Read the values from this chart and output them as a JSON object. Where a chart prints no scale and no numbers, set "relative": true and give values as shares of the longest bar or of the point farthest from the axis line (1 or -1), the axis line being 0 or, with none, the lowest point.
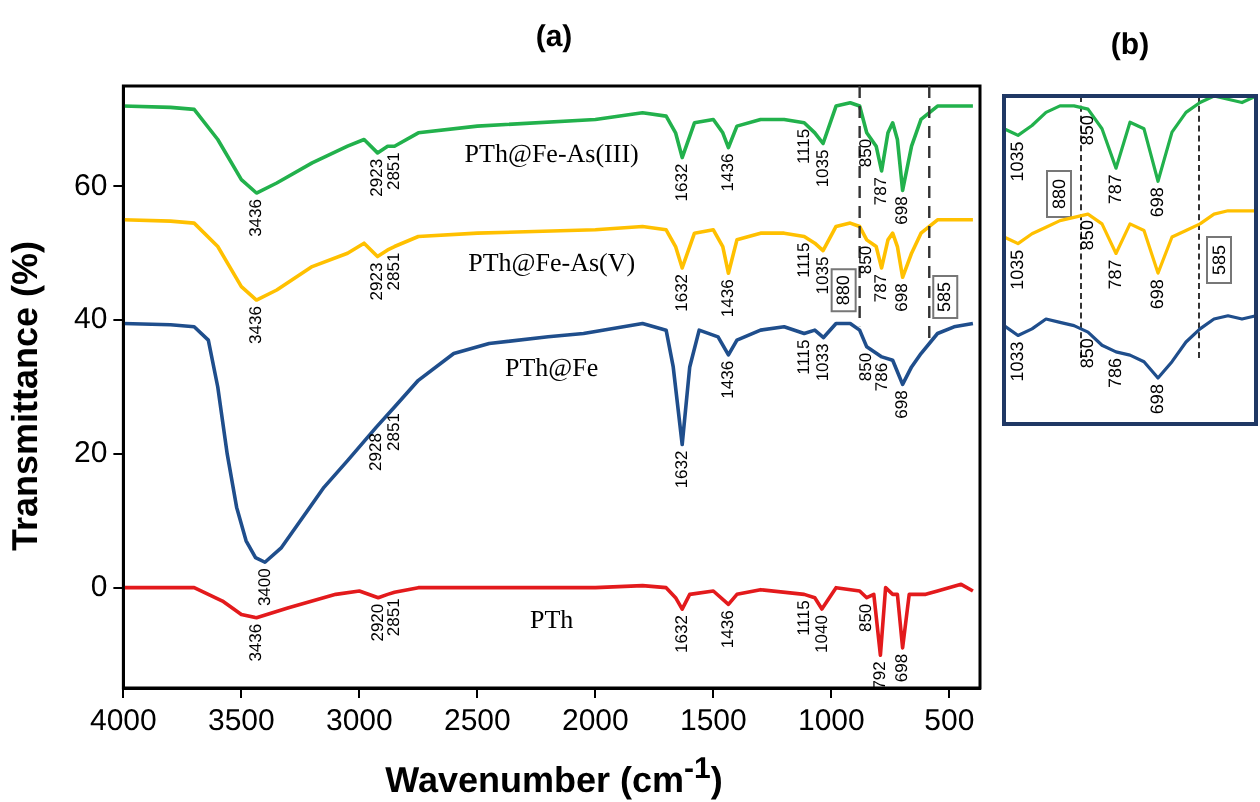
{
  "chart_data": [
    {
      "type": "line",
      "title": "(a)",
      "xlabel": "Wavenumber (cm$^{-1}$)",
      "ylabel": "Transmittance (%)",
      "xlim": [
        4000,
        370
      ],
      "xticks": [
        4000,
        3500,
        3000,
        2500,
        2000,
        1500,
        1000,
        500
      ],
      "ylim": [
        -15,
        75
      ],
      "yticks": [
        0,
        20,
        40,
        60
      ],
      "series": [
        {
          "name": "PTh@Fe-As(III)",
          "color": "#22b14c",
          "x": [
            4000,
            3800,
            3700,
            3600,
            3500,
            3436,
            3350,
            3200,
            3050,
            2980,
            2923,
            2880,
            2851,
            2750,
            2500,
            2000,
            1800,
            1700,
            1660,
            1632,
            1580,
            1500,
            1460,
            1436,
            1400,
            1300,
            1200,
            1115,
            1070,
            1035,
            980,
            920,
            880,
            850,
            810,
            787,
            760,
            740,
            720,
            698,
            660,
            620,
            550,
            480,
            400
          ],
          "values": [
            72,
            71.8,
            71.5,
            67,
            61,
            59,
            60.5,
            63.5,
            66,
            67,
            65,
            66,
            66,
            68,
            69,
            70,
            71,
            70.5,
            68,
            64.3,
            69.5,
            70,
            68,
            65.8,
            69,
            70,
            70,
            69.5,
            68,
            66.4,
            72,
            72.5,
            72,
            68,
            66,
            62.3,
            68,
            69.5,
            67,
            59.4,
            66,
            70,
            72,
            72,
            72
          ]
        },
        {
          "name": "PTh@Fe-As(V)",
          "color": "#ffc000",
          "x": [
            4000,
            3800,
            3700,
            3600,
            3500,
            3436,
            3350,
            3200,
            3050,
            2980,
            2923,
            2880,
            2851,
            2750,
            2500,
            2000,
            1800,
            1700,
            1660,
            1632,
            1580,
            1500,
            1460,
            1436,
            1400,
            1300,
            1200,
            1115,
            1070,
            1035,
            980,
            920,
            880,
            850,
            810,
            787,
            760,
            740,
            720,
            698,
            660,
            620,
            550,
            480,
            400
          ],
          "values": [
            55,
            54.8,
            54.5,
            51,
            45,
            43,
            44.5,
            48,
            50,
            51.5,
            49.5,
            50.5,
            51,
            52.5,
            53,
            53.5,
            54,
            53.5,
            51,
            47.8,
            53,
            53.5,
            51,
            47,
            52,
            53,
            53,
            52.5,
            51.5,
            50.4,
            54,
            54.5,
            54,
            52,
            51,
            47.8,
            52,
            53,
            51,
            46.4,
            50,
            53,
            55,
            55,
            55
          ]
        },
        {
          "name": "PTh@Fe",
          "color": "#1f4e8c",
          "x": [
            4000,
            3800,
            3700,
            3640,
            3600,
            3560,
            3520,
            3480,
            3440,
            3400,
            3330,
            3250,
            3150,
            3050,
            2928,
            2851,
            2750,
            2600,
            2450,
            2200,
            2050,
            1800,
            1700,
            1670,
            1632,
            1600,
            1560,
            1480,
            1436,
            1400,
            1300,
            1200,
            1115,
            1070,
            1033,
            980,
            920,
            880,
            850,
            786,
            740,
            698,
            660,
            620,
            550,
            480,
            400
          ],
          "values": [
            39.5,
            39.3,
            39,
            37,
            30,
            20,
            12,
            7,
            4.5,
            3.8,
            6,
            10,
            15,
            19,
            24,
            27,
            31,
            35,
            36.5,
            37.5,
            38,
            39.5,
            38.5,
            33,
            21.4,
            33,
            38.5,
            37.5,
            34.8,
            37,
            38.5,
            39,
            38,
            38.5,
            37.4,
            39.5,
            39.5,
            38.5,
            36,
            34.5,
            34,
            30.4,
            33,
            35,
            38,
            39,
            39.5
          ]
        },
        {
          "name": "PTh",
          "color": "#e31a1c",
          "x": [
            4000,
            3700,
            3580,
            3500,
            3436,
            3300,
            3100,
            3000,
            2920,
            2880,
            2851,
            2750,
            2000,
            1800,
            1700,
            1660,
            1632,
            1600,
            1500,
            1436,
            1400,
            1300,
            1115,
            1070,
            1040,
            980,
            880,
            850,
            820,
            792,
            770,
            740,
            720,
            698,
            670,
            600,
            550,
            450,
            400
          ],
          "values": [
            0,
            0,
            -2,
            -4,
            -4.5,
            -3,
            -1,
            -0.5,
            -1.5,
            -1,
            -0.7,
            0,
            0,
            0.3,
            0,
            -1.5,
            -3.2,
            -1,
            -0.5,
            -2.5,
            -1,
            -0.3,
            -1,
            -1.5,
            -3.2,
            0,
            -0.5,
            -1.5,
            -1,
            -10.1,
            0,
            -1,
            -1,
            -9,
            -1,
            -1,
            -0.5,
            0.5,
            -0.5
          ]
        }
      ],
      "ref_lines": [
        {
          "axis": "x",
          "value": 880,
          "label": "880",
          "line_style": "dashed"
        },
        {
          "axis": "x",
          "value": 585,
          "label": "585",
          "line_style": "dashed"
        }
      ],
      "annotations": [
        {
          "text": "3436",
          "x": 3436,
          "y": 59
        },
        {
          "text": "2923",
          "x": 2923,
          "y": 65
        },
        {
          "text": "2851",
          "x": 2851,
          "y": 66
        },
        {
          "text": "1632",
          "x": 1632,
          "y": 64.3
        },
        {
          "text": "1436",
          "x": 1436,
          "y": 65.8
        },
        {
          "text": "1115",
          "x": 1115,
          "y": 69.5
        },
        {
          "text": "1035",
          "x": 1035,
          "y": 66.4
        },
        {
          "text": "850",
          "x": 850,
          "y": 68
        },
        {
          "text": "787",
          "x": 787,
          "y": 62.3
        },
        {
          "text": "698",
          "x": 698,
          "y": 59.4
        },
        {
          "text": "3436",
          "x": 3436,
          "y": 43
        },
        {
          "text": "2923",
          "x": 2923,
          "y": 49.5
        },
        {
          "text": "2851",
          "x": 2851,
          "y": 51
        },
        {
          "text": "1632",
          "x": 1632,
          "y": 47.8
        },
        {
          "text": "1436",
          "x": 1436,
          "y": 47
        },
        {
          "text": "1115",
          "x": 1115,
          "y": 52.5
        },
        {
          "text": "1035",
          "x": 1035,
          "y": 50.4
        },
        {
          "text": "850",
          "x": 850,
          "y": 52
        },
        {
          "text": "787",
          "x": 787,
          "y": 47.8
        },
        {
          "text": "698",
          "x": 698,
          "y": 46.4
        },
        {
          "text": "3400",
          "x": 3400,
          "y": 3.8
        },
        {
          "text": "2928",
          "x": 2928,
          "y": 24
        },
        {
          "text": "2851",
          "x": 2851,
          "y": 27
        },
        {
          "text": "1632",
          "x": 1632,
          "y": 21.4
        },
        {
          "text": "1436",
          "x": 1436,
          "y": 34.8
        },
        {
          "text": "1115",
          "x": 1115,
          "y": 38
        },
        {
          "text": "1033",
          "x": 1033,
          "y": 37.4
        },
        {
          "text": "850",
          "x": 850,
          "y": 36
        },
        {
          "text": "786",
          "x": 786,
          "y": 34.5
        },
        {
          "text": "698",
          "x": 698,
          "y": 30.4
        },
        {
          "text": "3436",
          "x": 3436,
          "y": -4.5
        },
        {
          "text": "2920",
          "x": 2920,
          "y": -1.5
        },
        {
          "text": "2851",
          "x": 2851,
          "y": -0.7
        },
        {
          "text": "1632",
          "x": 1632,
          "y": -3.2
        },
        {
          "text": "1436",
          "x": 1436,
          "y": -2.5
        },
        {
          "text": "1115",
          "x": 1115,
          "y": -1
        },
        {
          "text": "1040",
          "x": 1040,
          "y": -3.2
        },
        {
          "text": "850",
          "x": 850,
          "y": -1.5
        },
        {
          "text": "792",
          "x": 792,
          "y": -10.1
        },
        {
          "text": "698",
          "x": 698,
          "y": -9
        }
      ]
    },
    {
      "type": "line",
      "title": "(b)",
      "relative": true,
      "categories": [
        null,
        null,
        null,
        null,
        null,
        null,
        null,
        null,
        null,
        null,
        null,
        null,
        null,
        null,
        null,
        null,
        null,
        null,
        null
      ],
      "series": [
        {
          "color": "#22b14c",
          "values": [
            0.9,
            0.88,
            0.91,
            0.95,
            0.97,
            0.97,
            0.96,
            0.9,
            0.78,
            0.92,
            0.9,
            0.74,
            0.89,
            0.95,
            0.98,
            1,
            0.99,
            0.98,
            1
          ]
        },
        {
          "color": "#ffc000",
          "values": [
            0.57,
            0.55,
            0.58,
            0.6,
            0.62,
            0.63,
            0.64,
            0.61,
            0.52,
            0.61,
            0.59,
            0.46,
            0.57,
            0.59,
            0.61,
            0.64,
            0.65,
            0.65,
            0.65
          ]
        },
        {
          "color": "#1f4e8c",
          "values": [
            0.3,
            0.27,
            0.29,
            0.32,
            0.31,
            0.3,
            0.28,
            0.24,
            0.22,
            0.21,
            0.19,
            0.14,
            0.19,
            0.25,
            0.29,
            0.32,
            0.33,
            0.32,
            0.33
          ]
        }
      ],
      "annotations": [
        "880",
        "585",
        {
          "text": "1035",
          "y": 0.88
        },
        {
          "text": "850",
          "y": 0.96
        },
        {
          "text": "787",
          "y": 0.78
        },
        {
          "text": "698",
          "y": 0.74
        },
        {
          "text": "1035",
          "y": 0.55
        },
        {
          "text": "850",
          "y": 0.64
        },
        {
          "text": "787",
          "y": 0.52
        },
        {
          "text": "698",
          "y": 0.46
        },
        {
          "text": "1033",
          "y": 0.27
        },
        {
          "text": "850",
          "y": 0.28
        },
        {
          "text": "786",
          "y": 0.22
        },
        {
          "text": "698",
          "y": 0.14
        }
      ]
    }
  ]
}
